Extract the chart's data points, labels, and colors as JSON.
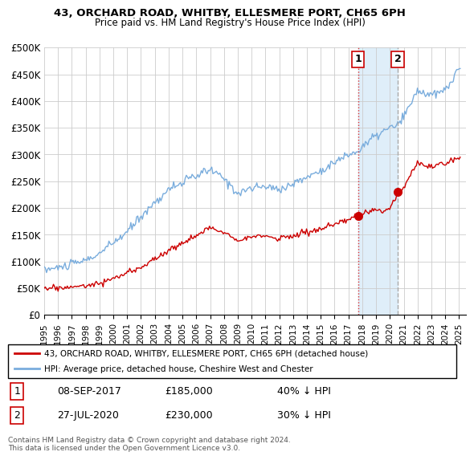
{
  "title": "43, ORCHARD ROAD, WHITBY, ELLESMERE PORT, CH65 6PH",
  "subtitle": "Price paid vs. HM Land Registry's House Price Index (HPI)",
  "ylabel_ticks": [
    "£0",
    "£50K",
    "£100K",
    "£150K",
    "£200K",
    "£250K",
    "£300K",
    "£350K",
    "£400K",
    "£450K",
    "£500K"
  ],
  "ytick_values": [
    0,
    50000,
    100000,
    150000,
    200000,
    250000,
    300000,
    350000,
    400000,
    450000,
    500000
  ],
  "ylim": [
    0,
    500000
  ],
  "xlim_start": 1995.0,
  "xlim_end": 2025.5,
  "hpi_color": "#7aaddd",
  "price_color": "#cc0000",
  "marker1_date": 2017.69,
  "marker1_price": 185000,
  "marker2_date": 2020.57,
  "marker2_price": 230000,
  "legend_line1": "43, ORCHARD ROAD, WHITBY, ELLESMERE PORT, CH65 6PH (detached house)",
  "legend_line2": "HPI: Average price, detached house, Cheshire West and Chester",
  "footer": "Contains HM Land Registry data © Crown copyright and database right 2024.\nThis data is licensed under the Open Government Licence v3.0.",
  "table_row1": [
    "1",
    "08-SEP-2017",
    "£185,000",
    "40% ↓ HPI"
  ],
  "table_row2": [
    "2",
    "27-JUL-2020",
    "£230,000",
    "30% ↓ HPI"
  ],
  "vline1_color": "#dd3333",
  "vline2_color": "#aaaaaa",
  "shade_color": "#d8eaf8",
  "background_color": "#ffffff"
}
